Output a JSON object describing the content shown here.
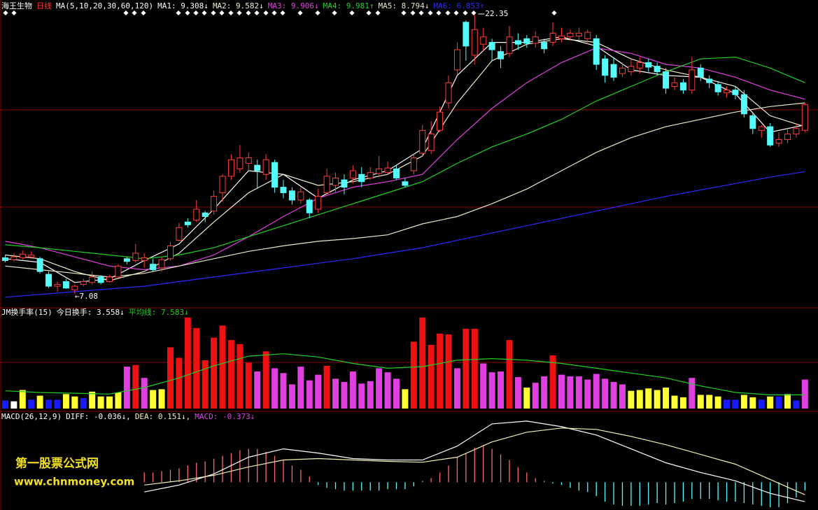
{
  "chart_data": [
    {
      "type": "candlestick",
      "title": "海王生物",
      "subtitle": "日线",
      "indicator": "MA(5,10,20,30,60,120)",
      "xlim": [
        -0.6,
        93.1
      ],
      "ylim": [
        6.32,
        22.54
      ],
      "grid": true,
      "up_color": "#ff3c3c",
      "down_color": "#54fcfc",
      "open": [
        9.05,
        8.95,
        9.05,
        9.1,
        9.0,
        8.15,
        7.5,
        7.75,
        7.3,
        7.6,
        7.7,
        8.0,
        7.75,
        8.0,
        9.0,
        8.9,
        8.9,
        8.7,
        8.5,
        9.0,
        10.0,
        11.0,
        11.1,
        11.5,
        11.6,
        12.6,
        13.5,
        13.9,
        14.2,
        14.1,
        13.6,
        14.25,
        12.9,
        12.7,
        12.2,
        12.2,
        11.7,
        12.6,
        13.0,
        13.3,
        13.4,
        13.6,
        13.4,
        13.65,
        13.7,
        13.9,
        13.2,
        13.8,
        14.75,
        14.9,
        16.0,
        17.5,
        19.3,
        21.9,
        20.1,
        20.7,
        20.8,
        20.3,
        20.2,
        20.9,
        21.0,
        20.75,
        20.8,
        20.8,
        21.0,
        21.1,
        21.15,
        21.0,
        21.0,
        19.9,
        19.6,
        19.1,
        19.2,
        19.4,
        19.7,
        19.5,
        19.2,
        18.4,
        18.6,
        18.2,
        19.4,
        18.8,
        18.5,
        18.05,
        18.2,
        17.95,
        16.8,
        16.0,
        16.2,
        15.3,
        15.5,
        15.8,
        16.0
      ],
      "high": [
        9.2,
        9.3,
        9.45,
        9.4,
        9.1,
        8.3,
        7.75,
        7.9,
        7.6,
        7.9,
        8.3,
        8.1,
        8.1,
        8.7,
        9.1,
        9.8,
        9.3,
        9.0,
        9.1,
        9.9,
        10.95,
        11.2,
        12.2,
        11.6,
        12.7,
        13.6,
        14.7,
        15.2,
        14.8,
        14.4,
        14.7,
        14.4,
        13.3,
        12.9,
        12.9,
        12.3,
        12.8,
        13.9,
        13.7,
        13.6,
        14.1,
        14.0,
        14.0,
        14.6,
        14.3,
        14.1,
        13.4,
        14.7,
        16.3,
        16.5,
        17.3,
        19.0,
        20.8,
        22.0,
        22.35,
        21.6,
        21.0,
        20.6,
        21.7,
        21.3,
        21.2,
        21.4,
        21.0,
        21.9,
        21.6,
        21.5,
        21.6,
        21.5,
        21.2,
        20.1,
        20.0,
        19.7,
        19.9,
        20.0,
        19.9,
        19.7,
        19.4,
        18.9,
        18.8,
        20.0,
        19.6,
        19.0,
        18.7,
        18.4,
        18.4,
        18.2,
        17.0,
        16.3,
        16.4,
        15.9,
        16.1,
        16.4,
        17.5
      ],
      "low": [
        8.8,
        8.85,
        8.95,
        9.0,
        8.2,
        7.4,
        7.2,
        7.35,
        7.08,
        7.5,
        7.6,
        7.6,
        7.7,
        7.95,
        8.7,
        8.8,
        8.5,
        8.3,
        8.3,
        8.9,
        9.95,
        10.7,
        11.0,
        11.0,
        11.4,
        12.1,
        13.3,
        13.7,
        13.8,
        12.8,
        13.3,
        12.6,
        12.3,
        11.95,
        12.0,
        11.2,
        11.5,
        12.5,
        12.6,
        12.5,
        13.1,
        12.9,
        13.3,
        13.5,
        13.6,
        13.3,
        12.9,
        13.6,
        14.6,
        14.7,
        15.9,
        17.2,
        19.0,
        19.8,
        19.6,
        20.3,
        19.8,
        19.4,
        20.0,
        20.4,
        20.5,
        20.5,
        20.2,
        20.6,
        20.8,
        20.9,
        20.9,
        20.7,
        19.3,
        18.6,
        18.7,
        18.9,
        19.0,
        19.1,
        19.2,
        19.0,
        18.0,
        18.2,
        18.0,
        18.0,
        18.7,
        18.3,
        17.9,
        17.8,
        17.7,
        16.7,
        15.8,
        15.6,
        15.1,
        15.1,
        15.3,
        15.6,
        15.9
      ],
      "close": [
        8.9,
        9.1,
        9.25,
        9.2,
        8.3,
        7.5,
        7.6,
        7.4,
        7.5,
        7.75,
        8.0,
        7.7,
        8.0,
        8.6,
        8.85,
        9.3,
        9.05,
        8.4,
        8.95,
        9.7,
        10.7,
        10.85,
        11.7,
        11.3,
        12.4,
        13.5,
        14.4,
        14.5,
        14.5,
        13.8,
        14.4,
        12.9,
        12.6,
        12.2,
        12.65,
        11.5,
        12.4,
        13.5,
        13.4,
        12.9,
        13.8,
        13.2,
        13.7,
        13.9,
        13.95,
        13.4,
        13.0,
        14.5,
        16.0,
        15.8,
        17.0,
        18.6,
        20.4,
        20.6,
        21.5,
        21.1,
        20.4,
        19.9,
        21.1,
        20.7,
        20.75,
        21.1,
        20.45,
        21.3,
        21.15,
        21.3,
        21.3,
        21.35,
        19.6,
        19.0,
        18.9,
        19.4,
        19.5,
        19.7,
        19.45,
        19.2,
        18.3,
        18.6,
        18.2,
        19.3,
        18.9,
        18.6,
        18.1,
        18.2,
        17.95,
        16.9,
        16.1,
        16.2,
        15.2,
        15.5,
        15.8,
        16.1,
        17.4
      ],
      "lines": [
        {
          "name": "MA1: 9.308↓",
          "color": "#ffffff",
          "x": [
            0,
            4,
            8,
            12,
            16,
            20,
            24,
            28,
            32,
            36,
            40,
            44,
            48,
            52,
            56,
            60,
            64,
            68,
            72,
            76,
            80,
            84,
            88,
            92
          ],
          "values": [
            9.0,
            8.8,
            7.7,
            7.9,
            8.9,
            9.8,
            11.7,
            13.8,
            13.6,
            12.3,
            13.3,
            13.8,
            15.0,
            19.0,
            20.8,
            20.8,
            21.1,
            20.6,
            19.3,
            19.0,
            18.9,
            18.0,
            15.9,
            16.3
          ]
        },
        {
          "name": "MA2: 9.582↓",
          "color": "#f0f0d0",
          "x": [
            0,
            4,
            8,
            12,
            16,
            20,
            24,
            28,
            32,
            36,
            40,
            44,
            48,
            52,
            56,
            60,
            64,
            68,
            72,
            76,
            80,
            84,
            88,
            92
          ],
          "values": [
            9.2,
            9.0,
            8.3,
            7.8,
            8.3,
            9.3,
            11.0,
            12.6,
            13.6,
            13.0,
            13.2,
            13.6,
            14.6,
            17.5,
            19.8,
            20.7,
            21.0,
            20.8,
            19.9,
            19.3,
            18.9,
            18.4,
            16.8,
            16.2
          ]
        },
        {
          "name": "MA3: 9.906↓",
          "color": "#e040e0",
          "x": [
            0,
            4,
            8,
            12,
            16,
            20,
            24,
            28,
            32,
            36,
            40,
            44,
            48,
            52,
            56,
            60,
            64,
            68,
            72,
            76,
            80,
            84,
            88,
            92
          ],
          "values": [
            9.95,
            9.6,
            9.1,
            8.6,
            8.4,
            8.6,
            9.2,
            10.2,
            11.3,
            12.3,
            12.9,
            13.2,
            13.6,
            15.5,
            17.2,
            18.6,
            19.7,
            20.5,
            20.2,
            19.6,
            19.4,
            18.9,
            18.2,
            17.7
          ]
        },
        {
          "name": "MA4: 9.981↑",
          "color": "#20d020",
          "x": [
            0,
            4,
            8,
            12,
            16,
            20,
            24,
            28,
            32,
            36,
            40,
            44,
            48,
            52,
            56,
            60,
            64,
            68,
            72,
            76,
            80,
            84,
            88,
            92
          ],
          "values": [
            9.76,
            9.6,
            9.4,
            9.2,
            9.0,
            9.2,
            9.6,
            10.2,
            10.8,
            11.4,
            12.0,
            12.6,
            13.2,
            14.2,
            15.1,
            15.8,
            16.6,
            17.6,
            18.4,
            19.2,
            19.9,
            20.0,
            19.4,
            18.6
          ]
        },
        {
          "name": "MA5: 8.794↓",
          "color": "#e8e8c8",
          "x": [
            0,
            4,
            8,
            12,
            16,
            20,
            24,
            28,
            32,
            36,
            40,
            44,
            48,
            52,
            56,
            60,
            64,
            68,
            72,
            76,
            80,
            84,
            88,
            92
          ],
          "values": [
            8.6,
            8.4,
            8.2,
            8.0,
            8.2,
            8.6,
            9.0,
            9.4,
            9.7,
            9.95,
            10.1,
            10.3,
            10.9,
            11.3,
            12.0,
            12.8,
            13.8,
            14.8,
            15.6,
            16.2,
            16.6,
            17.0,
            17.3,
            17.5
          ]
        },
        {
          "name": "MA6: 6.853↑",
          "color": "#2a2aff",
          "x": [
            0,
            4,
            8,
            12,
            16,
            20,
            24,
            28,
            32,
            36,
            40,
            44,
            48,
            52,
            56,
            60,
            64,
            68,
            72,
            76,
            80,
            84,
            88,
            92
          ],
          "values": [
            6.9,
            7.05,
            7.2,
            7.35,
            7.5,
            7.75,
            8.0,
            8.25,
            8.5,
            8.75,
            9.0,
            9.3,
            9.6,
            10.0,
            10.4,
            10.8,
            11.2,
            11.6,
            12.0,
            12.4,
            12.75,
            13.1,
            13.45,
            13.75
          ]
        }
      ],
      "annotations": [
        {
          "text": "22.35",
          "x": 54,
          "y": 22.35,
          "position": "right"
        },
        {
          "text": "←7.08",
          "x": 8,
          "y": 7.08,
          "position": "below"
        }
      ]
    },
    {
      "type": "bar",
      "title": "JM换手率(15)",
      "xlim": [
        -0.6,
        93.1
      ],
      "ylim": [
        0,
        12.5
      ],
      "grid": true,
      "bars": {
        "name": "今日换手: 3.558↓",
        "color": "#ffffff",
        "values": [
          1.0,
          0.9,
          2.3,
          1.1,
          1.6,
          1.1,
          1.1,
          1.8,
          1.5,
          1.3,
          2.1,
          1.5,
          1.5,
          2.0,
          5.2,
          5.4,
          3.8,
          2.3,
          2.4,
          7.6,
          6.3,
          11.3,
          10.0,
          6.0,
          8.8,
          10.3,
          8.5,
          8.0,
          5.7,
          4.6,
          7.1,
          5.0,
          4.4,
          3.0,
          5.2,
          3.5,
          4.2,
          5.3,
          3.7,
          3.3,
          4.6,
          3.1,
          3.4,
          5.0,
          4.5,
          3.7,
          2.4,
          8.3,
          11.3,
          7.9,
          9.3,
          9.2,
          5.0,
          9.9,
          9.9,
          5.6,
          4.5,
          4.6,
          8.5,
          3.9,
          2.6,
          3.2,
          4.0,
          6.6,
          4.2,
          4.0,
          4.0,
          3.6,
          4.3,
          3.7,
          3.3,
          3.0,
          2.2,
          2.3,
          2.5,
          2.3,
          2.6,
          1.6,
          1.4,
          3.8,
          1.7,
          1.7,
          1.5,
          1.1,
          1.1,
          1.7,
          1.4,
          1.1,
          1.5,
          1.5,
          1.8,
          1.0,
          3.6
        ],
        "colors": [
          "#1a1aff",
          "#ffffff",
          "#ffff33",
          "#1a1aff",
          "#ffff33",
          "#1a1aff",
          "#1a1aff",
          "#ffff33",
          "#ffff33",
          "#1a1aff",
          "#ffff33",
          "#ffff33",
          "#ffff33",
          "#ffff33",
          "#e040e0",
          "#ee1111",
          "#e040e0",
          "#ffff33",
          "#ffff33",
          "#ee1111",
          "#ee1111",
          "#ee1111",
          "#ee1111",
          "#ee1111",
          "#ee1111",
          "#ee1111",
          "#ee1111",
          "#ee1111",
          "#ee1111",
          "#e040e0",
          "#ee1111",
          "#e040e0",
          "#e040e0",
          "#e040e0",
          "#e040e0",
          "#e040e0",
          "#e040e0",
          "#ee1111",
          "#e040e0",
          "#e040e0",
          "#e040e0",
          "#e040e0",
          "#e040e0",
          "#e040e0",
          "#e040e0",
          "#e040e0",
          "#ffff33",
          "#ee1111",
          "#ee1111",
          "#ee1111",
          "#ee1111",
          "#ee1111",
          "#e040e0",
          "#ee1111",
          "#ee1111",
          "#e040e0",
          "#e040e0",
          "#e040e0",
          "#ee1111",
          "#e040e0",
          "#ffff33",
          "#e040e0",
          "#e040e0",
          "#ee1111",
          "#e040e0",
          "#e040e0",
          "#e040e0",
          "#e040e0",
          "#e040e0",
          "#e040e0",
          "#e040e0",
          "#e040e0",
          "#ffff33",
          "#ffff33",
          "#ffff33",
          "#ffff33",
          "#ffff33",
          "#ffff33",
          "#ffff33",
          "#e040e0",
          "#ffff33",
          "#ffff33",
          "#ffff33",
          "#1a1aff",
          "#1a1aff",
          "#ffff33",
          "#ffff33",
          "#1a1aff",
          "#ffff33",
          "#1a1aff",
          "#ffff33",
          "#1a1aff",
          "#e040e0"
        ]
      },
      "lines": [
        {
          "name": "平均线: 7.583↓",
          "color": "#20d020",
          "x": [
            0,
            4,
            8,
            12,
            16,
            20,
            24,
            28,
            32,
            36,
            40,
            44,
            48,
            52,
            56,
            60,
            64,
            68,
            72,
            76,
            80,
            84,
            88,
            92
          ],
          "values": [
            2.2,
            2.0,
            1.9,
            1.8,
            2.6,
            3.8,
            5.3,
            6.5,
            6.8,
            6.4,
            5.6,
            5.0,
            5.2,
            6.0,
            6.2,
            6.0,
            5.6,
            5.0,
            4.4,
            3.8,
            2.8,
            2.0,
            1.7,
            1.7
          ]
        }
      ]
    },
    {
      "type": "macd",
      "title": "MACD(26,12,9)",
      "xlim": [
        -0.6,
        93.1
      ],
      "ylim": [
        -1.0,
        2.5
      ],
      "lines": [
        {
          "name": "DIFF: -0.036↓,",
          "color": "#ffffff",
          "x": [
            16,
            20,
            24,
            28,
            32,
            36,
            40,
            44,
            48,
            52,
            56,
            60,
            64,
            68,
            72,
            76,
            80,
            84,
            88,
            92
          ],
          "values": [
            -0.35,
            -0.1,
            0.3,
            0.9,
            1.2,
            1.05,
            0.85,
            0.8,
            0.8,
            1.3,
            2.1,
            2.2,
            2.0,
            1.7,
            1.2,
            0.7,
            0.35,
            0.05,
            -0.4,
            -0.7
          ]
        },
        {
          "name": "DEA: 0.151↓,",
          "color": "#f4f0b8",
          "x": [
            16,
            20,
            24,
            28,
            32,
            36,
            40,
            44,
            48,
            52,
            56,
            60,
            64,
            68,
            72,
            76,
            80,
            84,
            88,
            92
          ],
          "values": [
            -0.1,
            0.05,
            0.25,
            0.55,
            0.8,
            0.85,
            0.8,
            0.75,
            0.72,
            0.9,
            1.45,
            1.8,
            1.95,
            1.9,
            1.65,
            1.35,
            1.0,
            0.65,
            0.1,
            -0.45
          ]
        }
      ],
      "histogram": {
        "name": "MACD: -0.373↓",
        "color": "#e040e0",
        "up_color": "#ff6a6a",
        "down_color": "#54fcfc",
        "values": [
          null,
          null,
          null,
          null,
          null,
          null,
          null,
          null,
          null,
          null,
          null,
          null,
          null,
          null,
          null,
          null,
          0.35,
          0.35,
          0.4,
          0.45,
          0.5,
          0.6,
          0.7,
          0.75,
          0.85,
          0.95,
          1.05,
          1.15,
          1.2,
          1.2,
          1.1,
          0.95,
          0.8,
          0.6,
          0.45,
          0.2,
          -0.1,
          -0.2,
          -0.25,
          -0.3,
          -0.3,
          -0.3,
          -0.3,
          -0.3,
          -0.25,
          -0.25,
          -0.25,
          -0.15,
          0.05,
          0.15,
          0.35,
          0.6,
          0.9,
          1.05,
          1.25,
          1.35,
          1.2,
          1.0,
          0.8,
          0.55,
          0.35,
          0.15,
          0.05,
          -0.05,
          -0.1,
          -0.2,
          -0.3,
          -0.35,
          -0.5,
          -0.7,
          -0.8,
          -0.85,
          -0.85,
          -0.85,
          -0.8,
          -0.75,
          -0.8,
          -0.75,
          -0.7,
          -0.6,
          -0.6,
          -0.6,
          -0.65,
          -0.7,
          -0.7,
          -0.75,
          -0.8,
          -0.85,
          -0.9,
          -0.9,
          -0.75,
          -0.55,
          -0.3
        ]
      },
      "watermark": [
        "第一股票公式网",
        "www.chnmoney.com"
      ]
    }
  ]
}
